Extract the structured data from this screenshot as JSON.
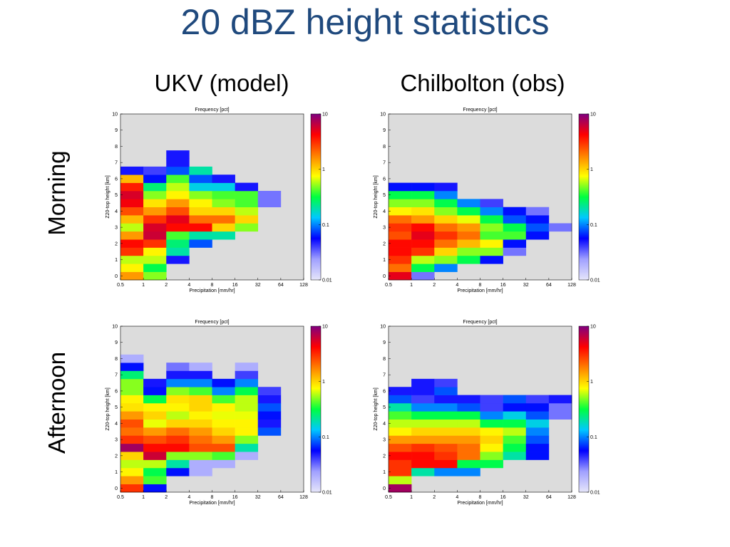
{
  "slide": {
    "title": "20 dBZ height statistics",
    "columns": [
      "UKV (model)",
      "Chilbolton (obs)"
    ],
    "rows": [
      "Morning",
      "Afternoon"
    ]
  },
  "colors": {
    "title": "#1f497d",
    "background": "#dcdcdc",
    "colormap": [
      "#e6e6fa",
      "#a0a0ff",
      "#0000ff",
      "#00c8ff",
      "#00ff40",
      "#ffff00",
      "#ff8000",
      "#ff0000",
      "#800080"
    ]
  },
  "chart_data": [
    {
      "type": "heatmap",
      "title": "Frequency [pct]",
      "xlabel": "Precipitation [mm/hr]",
      "ylabel": "Z20-top height [km]",
      "xticks": [
        "0.5",
        "1",
        "2",
        "4",
        "8",
        "16",
        "32",
        "64",
        "128"
      ],
      "yticks": [
        "0",
        "1",
        "2",
        "3",
        "4",
        "5",
        "6",
        "7",
        "8",
        "9",
        "10"
      ],
      "xlim": [
        0.5,
        128
      ],
      "ylim": [
        -0.25,
        10
      ],
      "x_scale": "log2",
      "color_scale": "log",
      "colorbar_ticks": [
        "10",
        "1",
        "0.1",
        "0.01"
      ],
      "colorbar_range": [
        0.01,
        10
      ],
      "row": "Morning",
      "column": "UKV (model)",
      "y_bin_km": 0.5,
      "cells": [
        {
          "xbin": 0,
          "y0": -0.25,
          "values": [
            1.5,
            0.8,
            0.6,
            3.0,
            4.0,
            1.5,
            0.6,
            1.2,
            2.5,
            4.5,
            5.5,
            3.5,
            1.2,
            0.05
          ]
        },
        {
          "xbin": 1,
          "y0": -0.25,
          "values": [
            0.5,
            0.3,
            0.6,
            0.8,
            3.0,
            6.0,
            5.5,
            3.0,
            1.5,
            0.9,
            0.5,
            0.25,
            0.06,
            0.04
          ]
        },
        {
          "xbin": 2,
          "y0": 0.75,
          "values": [
            0.05,
            0.2,
            0.25,
            0.4,
            4.0,
            5.0,
            2.5,
            1.5,
            0.8,
            0.6,
            0.4,
            0.08,
            0.05,
            0.05
          ]
        },
        {
          "xbin": 3,
          "y0": 1.75,
          "values": [
            0.08,
            0.2,
            4.0,
            2.0,
            1.0,
            0.8,
            0.5,
            0.15,
            0.08,
            0.2
          ]
        },
        {
          "xbin": 4,
          "y0": 2.25,
          "values": [
            0.2,
            1.0,
            2.0,
            1.0,
            0.5,
            0.4,
            0.15,
            0.05
          ]
        },
        {
          "xbin": 5,
          "y0": 2.75,
          "values": [
            0.5,
            1.0,
            0.6,
            0.4,
            0.4,
            0.05
          ]
        },
        {
          "xbin": 6,
          "y0": 4.25,
          "values": [
            0.03,
            0.03
          ]
        }
      ]
    },
    {
      "type": "heatmap",
      "title": "Frequency [pct]",
      "xlabel": "Precipitation [mm/hr]",
      "ylabel": "Z20-top height [km]",
      "xticks": [
        "0.5",
        "1",
        "2",
        "4",
        "8",
        "16",
        "32",
        "64",
        "128"
      ],
      "yticks": [
        "0",
        "1",
        "2",
        "3",
        "4",
        "5",
        "6",
        "7",
        "8",
        "9",
        "10"
      ],
      "xlim": [
        0.5,
        128
      ],
      "ylim": [
        -0.25,
        10
      ],
      "x_scale": "log2",
      "color_scale": "log",
      "colorbar_ticks": [
        "10",
        "1",
        "0.1",
        "0.01"
      ],
      "colorbar_range": [
        0.01,
        10
      ],
      "row": "Morning",
      "column": "Chilbolton (obs)",
      "y_bin_km": 0.5,
      "cells": [
        {
          "xbin": 0,
          "y0": -0.25,
          "values": [
            5.0,
            2.0,
            3.0,
            4.0,
            4.0,
            2.5,
            3.0,
            2.0,
            0.8,
            0.5,
            0.3,
            0.06
          ]
        },
        {
          "xbin": 1,
          "y0": -0.25,
          "values": [
            0.03,
            0.3,
            0.6,
            3.0,
            4.0,
            5.0,
            4.0,
            1.5,
            0.9,
            0.5,
            0.3,
            0.06
          ]
        },
        {
          "xbin": 2,
          "y0": 0.25,
          "values": [
            0.1,
            0.5,
            1.0,
            2.0,
            3.0,
            2.0,
            1.0,
            0.5,
            0.3,
            0.1,
            0.05
          ]
        },
        {
          "xbin": 3,
          "y0": 0.75,
          "values": [
            0.3,
            0.5,
            1.2,
            2.0,
            1.5,
            0.7,
            0.3,
            0.1
          ]
        },
        {
          "xbin": 4,
          "y0": 0.75,
          "values": [
            0.06,
            0.5,
            0.8,
            0.4,
            0.5,
            0.3,
            0.1,
            0.04
          ]
        },
        {
          "xbin": 5,
          "y0": 1.25,
          "values": [
            0.03,
            0.06,
            0.4,
            0.3,
            0.08,
            0.06
          ]
        },
        {
          "xbin": 6,
          "y0": 2.25,
          "values": [
            0.06,
            0.08,
            0.06,
            0.03
          ]
        },
        {
          "xbin": 7,
          "y0": 2.75,
          "values": [
            0.03
          ]
        }
      ]
    },
    {
      "type": "heatmap",
      "title": "Frequency [pct]",
      "xlabel": "Precipitation [mm/hr]",
      "ylabel": "Z20-top height [km]",
      "xticks": [
        "0.5",
        "1",
        "2",
        "4",
        "8",
        "16",
        "32",
        "64",
        "128"
      ],
      "yticks": [
        "0",
        "1",
        "2",
        "3",
        "4",
        "5",
        "6",
        "7",
        "8",
        "9",
        "10"
      ],
      "xlim": [
        0.5,
        128
      ],
      "ylim": [
        -0.25,
        10
      ],
      "x_scale": "log2",
      "color_scale": "log",
      "colorbar_ticks": [
        "10",
        "1",
        "0.1",
        "0.01"
      ],
      "colorbar_range": [
        0.01,
        10
      ],
      "row": "Afternoon",
      "column": "UKV (model)",
      "y_bin_km": 0.5,
      "cells": [
        {
          "xbin": 0,
          "y0": -0.25,
          "values": [
            3.0,
            1.5,
            0.8,
            0.6,
            1.0,
            8.0,
            3.0,
            2.0,
            2.5,
            1.5,
            0.9,
            0.8,
            0.5,
            0.5,
            0.25,
            0.06,
            0.02
          ]
        },
        {
          "xbin": 1,
          "y0": -0.25,
          "values": [
            0.06,
            0.4,
            0.3,
            0.6,
            6.0,
            4.0,
            2.5,
            1.5,
            0.7,
            1.0,
            0.8,
            0.3,
            0.06,
            0.05
          ]
        },
        {
          "xbin": 2,
          "y0": 0.75,
          "values": [
            0.06,
            0.2,
            0.5,
            4.0,
            3.0,
            2.0,
            1.0,
            0.6,
            0.8,
            0.9,
            0.5,
            0.1,
            0.05,
            0.03
          ]
        },
        {
          "xbin": 3,
          "y0": 0.75,
          "values": [
            0.02,
            0.02,
            0.5,
            2.5,
            2.0,
            1.5,
            1.0,
            0.8,
            1.0,
            1.0,
            0.4,
            0.1,
            0.05,
            0.02
          ]
        },
        {
          "xbin": 4,
          "y0": 1.25,
          "values": [
            0.02,
            0.4,
            2.5,
            1.5,
            1.0,
            0.8,
            0.7,
            0.8,
            0.4,
            0.1,
            0.06
          ]
        },
        {
          "xbin": 5,
          "y0": 1.75,
          "values": [
            0.02,
            0.2,
            0.5,
            0.8,
            0.8,
            0.7,
            0.6,
            0.6,
            0.3,
            0.1,
            0.04,
            0.02
          ]
        },
        {
          "xbin": 6,
          "y0": 3.25,
          "values": [
            0.08,
            0.05,
            0.06,
            0.08,
            0.05,
            0.04
          ]
        }
      ]
    },
    {
      "type": "heatmap",
      "title": "Frequency [pct]",
      "xlabel": "Precipitation [mm/hr]",
      "ylabel": "Z20-top height [km]",
      "xticks": [
        "0.5",
        "1",
        "2",
        "4",
        "8",
        "16",
        "32",
        "64",
        "128"
      ],
      "yticks": [
        "0",
        "1",
        "2",
        "3",
        "4",
        "5",
        "6",
        "7",
        "8",
        "9",
        "10"
      ],
      "xlim": [
        0.5,
        128
      ],
      "ylim": [
        -0.25,
        10
      ],
      "x_scale": "log2",
      "color_scale": "log",
      "colorbar_ticks": [
        "10",
        "1",
        "0.1",
        "0.01"
      ],
      "colorbar_range": [
        0.01,
        10
      ],
      "row": "Afternoon",
      "column": "Chilbolton (obs)",
      "y_bin_km": 0.5,
      "cells": [
        {
          "xbin": 0,
          "y0": -0.25,
          "values": [
            8.0,
            0.6,
            3.0,
            3.0,
            4.0,
            2.5,
            1.5,
            0.8,
            0.6,
            0.4,
            0.2,
            0.08,
            0.05
          ]
        },
        {
          "xbin": 1,
          "y0": 0.75,
          "values": [
            0.2,
            4.0,
            4.0,
            3.0,
            1.5,
            1.0,
            0.6,
            0.3,
            0.1,
            0.04,
            0.05,
            0.05
          ]
        },
        {
          "xbin": 2,
          "y0": 0.75,
          "values": [
            0.1,
            4.0,
            3.0,
            2.5,
            1.5,
            1.0,
            0.6,
            0.3,
            0.1,
            0.05,
            0.08,
            0.04
          ]
        },
        {
          "xbin": 3,
          "y0": 0.75,
          "values": [
            0.1,
            0.3,
            2.0,
            2.0,
            1.5,
            1.0,
            0.6,
            0.3,
            0.08,
            0.05
          ]
        },
        {
          "xbin": 4,
          "y0": 1.25,
          "values": [
            0.3,
            0.5,
            0.8,
            1.0,
            0.8,
            0.3,
            0.1,
            0.04,
            0.04
          ]
        },
        {
          "xbin": 5,
          "y0": 1.75,
          "values": [
            0.2,
            0.3,
            0.4,
            0.6,
            0.3,
            0.15,
            0.06,
            0.08
          ]
        },
        {
          "xbin": 6,
          "y0": 1.75,
          "values": [
            0.06,
            0.06,
            0.08,
            0.1,
            0.15,
            0.08,
            0.06,
            0.04
          ]
        },
        {
          "xbin": 7,
          "y0": 4.25,
          "values": [
            0.03,
            0.03,
            0.05
          ]
        }
      ]
    }
  ]
}
